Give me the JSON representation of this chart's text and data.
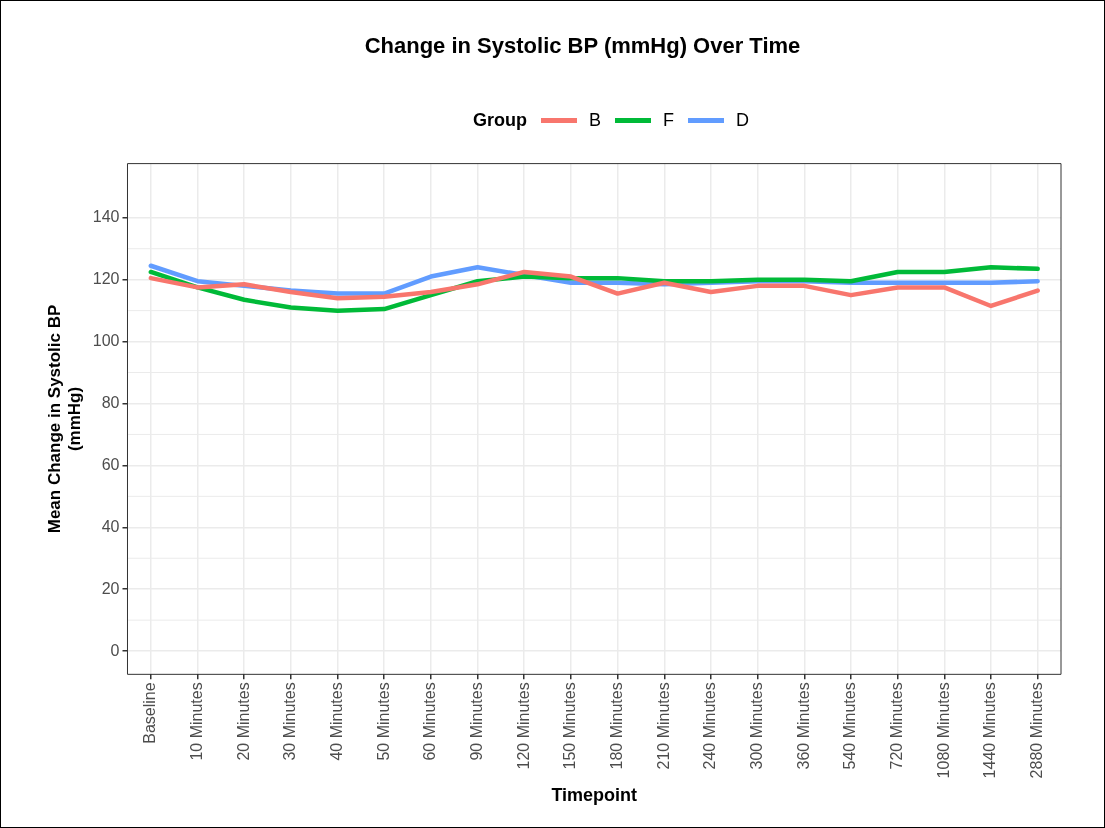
{
  "chart_data": {
    "type": "line",
    "title": "Change in Systolic BP (mmHg) Over Time",
    "xlabel": "Timepoint",
    "ylabel": "Mean Change in Systolic BP (mmHg)",
    "legend_title": "Group",
    "legend": "top",
    "grid": true,
    "marker": "none",
    "line_style": "solid",
    "categories": [
      "Baseline",
      "10 Minutes",
      "20 Minutes",
      "30 Minutes",
      "40 Minutes",
      "50 Minutes",
      "60 Minutes",
      "90 Minutes",
      "120 Minutes",
      "150 Minutes",
      "180 Minutes",
      "210 Minutes",
      "240 Minutes",
      "300 Minutes",
      "360 Minutes",
      "540 Minutes",
      "720 Minutes",
      "1080 Minutes",
      "1440 Minutes",
      "2880 Minutes"
    ],
    "ylim": [
      -7.5,
      157.5
    ],
    "yticks": [
      0,
      20,
      40,
      60,
      80,
      100,
      120,
      140
    ],
    "series": [
      {
        "name": "B",
        "color": "#f8766d",
        "values": [
          120.5,
          117.5,
          118.5,
          116,
          114,
          114.5,
          116,
          118.5,
          122.5,
          121,
          115.5,
          119,
          116,
          118,
          118,
          115,
          117.5,
          117.5,
          111.5,
          116.5
        ]
      },
      {
        "name": "F",
        "color": "#00ba38",
        "values": [
          122.5,
          117.5,
          113.5,
          111,
          110,
          110.5,
          115,
          119.5,
          121,
          120.5,
          120.5,
          119.5,
          119.5,
          120,
          120,
          119.5,
          122.5,
          122.5,
          124,
          123.5
        ]
      },
      {
        "name": "D",
        "color": "#619cff",
        "values": [
          124.5,
          119.5,
          118,
          116.5,
          115.5,
          115.5,
          121,
          124,
          121.5,
          119,
          119,
          118.5,
          119,
          119.5,
          119.5,
          119,
          119,
          119,
          119,
          119.5
        ]
      }
    ]
  }
}
